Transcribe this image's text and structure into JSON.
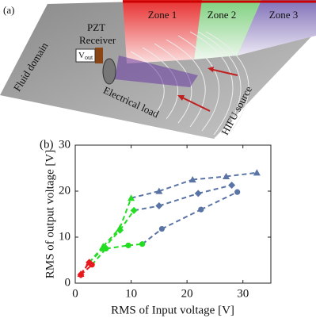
{
  "panel_a": {
    "label": "(a)",
    "pzt": "PZT",
    "receiver": "Receiver",
    "vout": {
      "main": "V",
      "sub": "out"
    },
    "fluid_domain": "Fluid domain",
    "electrical_load": "Electrical load",
    "hifu_source": "HIFU source",
    "zones": [
      "Zone 1",
      "Zone 2",
      "Zone 3"
    ]
  },
  "chart_data": {
    "type": "line",
    "label": "(b)",
    "xlabel": "RMS of Input voltage [V]",
    "ylabel": "RMS of output voltage [V]",
    "xlim": [
      0,
      35
    ],
    "xticks": [
      0,
      10,
      20,
      30
    ],
    "ylim": [
      0,
      30
    ],
    "yticks": [
      0,
      10,
      20,
      30
    ],
    "series": [
      {
        "marker": "triangle",
        "x": [
          1,
          2.5,
          5,
          8,
          10,
          15,
          21,
          27,
          32.5
        ],
        "values": [
          2,
          4.5,
          8,
          12,
          18.5,
          20,
          22.5,
          23.2,
          24
        ],
        "colors": [
          "#e8191c",
          "#e8191c",
          "#22dd22",
          "#22dd22",
          "#22dd22",
          "#5a74a6",
          "#5a74a6",
          "#5a74a6",
          "#5a74a6"
        ]
      },
      {
        "marker": "diamond",
        "x": [
          1,
          2.5,
          5,
          8,
          10.5,
          15,
          22,
          28
        ],
        "values": [
          1.8,
          4.5,
          7.5,
          11.5,
          15.8,
          16.8,
          19.5,
          21.3
        ],
        "colors": [
          "#e8191c",
          "#e8191c",
          "#22dd22",
          "#22dd22",
          "#22dd22",
          "#5a74a6",
          "#5a74a6",
          "#5a74a6"
        ]
      },
      {
        "marker": "circle",
        "x": [
          1,
          3,
          5.5,
          9.5,
          12,
          15.5,
          22.5,
          29
        ],
        "values": [
          1.8,
          4,
          7.5,
          8.2,
          8.5,
          11.8,
          16,
          19.8
        ],
        "colors": [
          "#e8191c",
          "#e8191c",
          "#22dd22",
          "#22dd22",
          "#22dd22",
          "#5a74a6",
          "#5a74a6",
          "#5a74a6"
        ]
      }
    ]
  }
}
